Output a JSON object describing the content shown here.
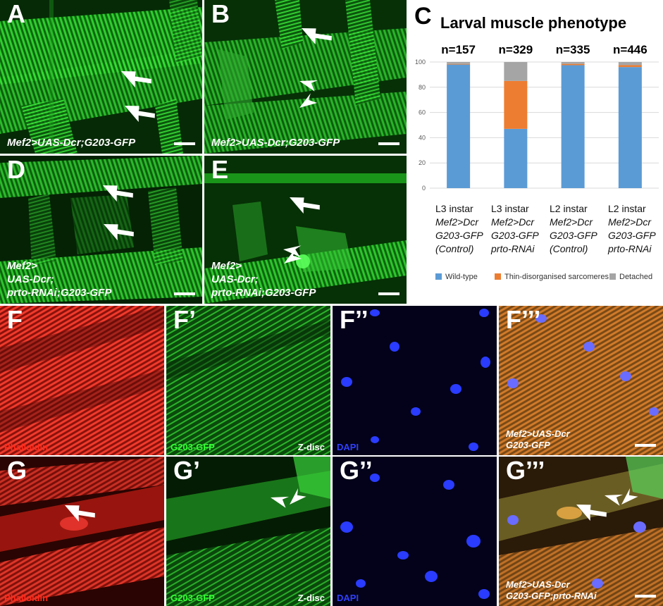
{
  "colors": {
    "muscle_green": "#1fc81f",
    "phalloidin_red": "#d8241a",
    "dapi_blue": "#2236ff",
    "wild_type": "#5b9bd5",
    "thin_disorganised": "#ed7d31",
    "detached": "#a5a5a5"
  },
  "panels": {
    "A": {
      "label": "A",
      "genotype": [
        "Mef2>UAS-Dcr;G203-GFP"
      ]
    },
    "B": {
      "label": "B",
      "genotype": [
        "Mef2>UAS-Dcr;G203-GFP"
      ]
    },
    "D": {
      "label": "D",
      "genotype": [
        "Mef2>",
        "UAS-Dcr;",
        "prto-RNAi;G203-GFP"
      ]
    },
    "E": {
      "label": "E",
      "genotype": [
        "Mef2>",
        "UAS-Dcr;",
        "prto-RNAi;G203-GFP"
      ]
    },
    "F": {
      "label": "F",
      "channel": "Phalloidin"
    },
    "F1": {
      "label": "F’",
      "channel": "G203-GFP",
      "marker": "Z-disc"
    },
    "F2": {
      "label": "F’’",
      "channel": "DAPI"
    },
    "F3": {
      "label": "F’’’",
      "genotype": [
        "Mef2>UAS-Dcr",
        "G203-GFP"
      ]
    },
    "G": {
      "label": "G",
      "channel": "Phalloidin"
    },
    "G1": {
      "label": "G’",
      "channel": "G203-GFP",
      "marker": "Z-disc"
    },
    "G2": {
      "label": "G’’",
      "channel": "DAPI"
    },
    "G3": {
      "label": "G’’’",
      "genotype": [
        "Mef2>UAS-Dcr",
        "G203-GFP;prto-RNAi"
      ]
    }
  },
  "chart_panel_label": "C",
  "chart_data": {
    "type": "bar",
    "stacked": true,
    "title": "Larval muscle phenotype",
    "n_labels": [
      "n=157",
      "n=329",
      "n=335",
      "n=446"
    ],
    "categories": [
      [
        "L3 instar",
        "Mef2>Dcr",
        "G203-GFP",
        "(Control)"
      ],
      [
        "L3 instar",
        "Mef2>Dcr",
        "G203-GFP",
        "prto-RNAi"
      ],
      [
        "L2 instar",
        "Mef2>Dcr",
        "G203-GFP",
        "(Control)"
      ],
      [
        "L2 instar",
        "Mef2>Dcr",
        "G203-GFP",
        "prto-RNAi"
      ]
    ],
    "series": [
      {
        "name": "Wild-type",
        "color": "#5b9bd5",
        "values": [
          98,
          47,
          97.5,
          96
        ]
      },
      {
        "name": "Thin-disorganised sarcomeres",
        "color": "#ed7d31",
        "values": [
          0.5,
          38,
          1,
          1.5
        ]
      },
      {
        "name": "Detached",
        "color": "#a5a5a5",
        "values": [
          1.5,
          15,
          1.5,
          2.5
        ]
      }
    ],
    "yticks": [
      0,
      20,
      40,
      60,
      80,
      100
    ],
    "ylim": [
      0,
      100
    ],
    "legend_position": "bottom"
  }
}
